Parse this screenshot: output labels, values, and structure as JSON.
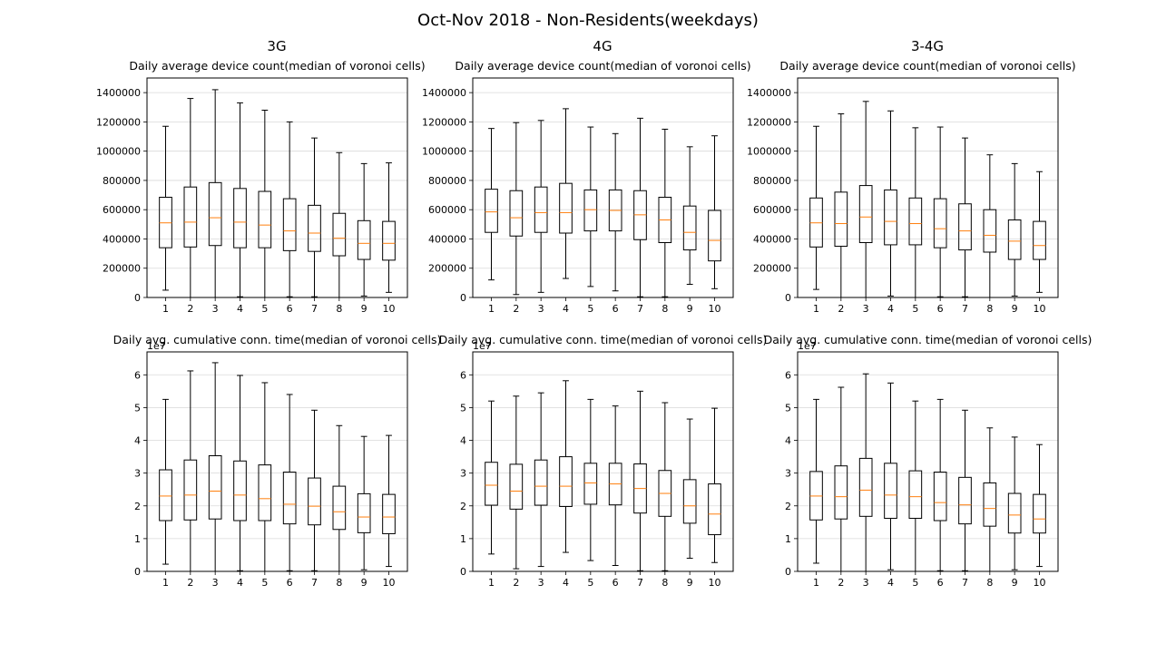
{
  "figure": {
    "title": "Oct-Nov 2018 - Non-Residents(weekdays)",
    "columns": [
      "3G",
      "4G",
      "3-4G"
    ]
  },
  "colors": {
    "box": "#000000",
    "median": "#ff7f0e",
    "grid": "#d9d9d9"
  },
  "chart_data": [
    {
      "type": "box",
      "column": "3G",
      "title": "Daily average device count(median of voronoi cells)",
      "categories": [
        "1",
        "2",
        "3",
        "4",
        "5",
        "6",
        "7",
        "8",
        "9",
        "10"
      ],
      "ylim": [
        0,
        1500000
      ],
      "yticks": [
        0,
        200000,
        400000,
        600000,
        800000,
        1000000,
        1200000,
        1400000
      ],
      "ytick_labels": [
        "0",
        "200000",
        "400000",
        "600000",
        "800000",
        "1000000",
        "1200000",
        "1400000"
      ],
      "offset_text": "",
      "grid": "y",
      "boxes": [
        {
          "whislo": 50000,
          "q1": 340000,
          "med": 510000,
          "q3": 685000,
          "whishi": 1170000
        },
        {
          "whislo": 0,
          "q1": 345000,
          "med": 515000,
          "q3": 755000,
          "whishi": 1360000
        },
        {
          "whislo": 0,
          "q1": 355000,
          "med": 545000,
          "q3": 785000,
          "whishi": 1420000
        },
        {
          "whislo": 5000,
          "q1": 340000,
          "med": 515000,
          "q3": 745000,
          "whishi": 1330000
        },
        {
          "whislo": 0,
          "q1": 340000,
          "med": 495000,
          "q3": 725000,
          "whishi": 1280000
        },
        {
          "whislo": 5000,
          "q1": 320000,
          "med": 455000,
          "q3": 675000,
          "whishi": 1200000
        },
        {
          "whislo": 5000,
          "q1": 315000,
          "med": 440000,
          "q3": 630000,
          "whishi": 1090000
        },
        {
          "whislo": 0,
          "q1": 285000,
          "med": 405000,
          "q3": 575000,
          "whishi": 990000
        },
        {
          "whislo": 10000,
          "q1": 260000,
          "med": 370000,
          "q3": 525000,
          "whishi": 915000
        },
        {
          "whislo": 35000,
          "q1": 255000,
          "med": 370000,
          "q3": 520000,
          "whishi": 920000
        }
      ]
    },
    {
      "type": "box",
      "column": "4G",
      "title": "Daily average device count(median of voronoi cells)",
      "categories": [
        "1",
        "2",
        "3",
        "4",
        "5",
        "6",
        "7",
        "8",
        "9",
        "10"
      ],
      "ylim": [
        0,
        1500000
      ],
      "yticks": [
        0,
        200000,
        400000,
        600000,
        800000,
        1000000,
        1200000,
        1400000
      ],
      "ytick_labels": [
        "0",
        "200000",
        "400000",
        "600000",
        "800000",
        "1000000",
        "1200000",
        "1400000"
      ],
      "offset_text": "",
      "grid": "y",
      "boxes": [
        {
          "whislo": 120000,
          "q1": 445000,
          "med": 585000,
          "q3": 740000,
          "whishi": 1155000
        },
        {
          "whislo": 20000,
          "q1": 420000,
          "med": 545000,
          "q3": 730000,
          "whishi": 1195000
        },
        {
          "whislo": 35000,
          "q1": 445000,
          "med": 580000,
          "q3": 755000,
          "whishi": 1210000
        },
        {
          "whislo": 130000,
          "q1": 440000,
          "med": 580000,
          "q3": 780000,
          "whishi": 1290000
        },
        {
          "whislo": 75000,
          "q1": 455000,
          "med": 600000,
          "q3": 735000,
          "whishi": 1165000
        },
        {
          "whislo": 45000,
          "q1": 455000,
          "med": 595000,
          "q3": 735000,
          "whishi": 1120000
        },
        {
          "whislo": 5000,
          "q1": 395000,
          "med": 565000,
          "q3": 730000,
          "whishi": 1225000
        },
        {
          "whislo": 5000,
          "q1": 375000,
          "med": 530000,
          "q3": 685000,
          "whishi": 1150000
        },
        {
          "whislo": 90000,
          "q1": 325000,
          "med": 445000,
          "q3": 625000,
          "whishi": 1030000
        },
        {
          "whislo": 60000,
          "q1": 250000,
          "med": 390000,
          "q3": 595000,
          "whishi": 1105000
        }
      ]
    },
    {
      "type": "box",
      "column": "3-4G",
      "title": "Daily average device count(median of voronoi cells)",
      "categories": [
        "1",
        "2",
        "3",
        "4",
        "5",
        "6",
        "7",
        "8",
        "9",
        "10"
      ],
      "ylim": [
        0,
        1500000
      ],
      "yticks": [
        0,
        200000,
        400000,
        600000,
        800000,
        1000000,
        1200000,
        1400000
      ],
      "ytick_labels": [
        "0",
        "200000",
        "400000",
        "600000",
        "800000",
        "1000000",
        "1200000",
        "1400000"
      ],
      "offset_text": "",
      "grid": "y",
      "boxes": [
        {
          "whislo": 55000,
          "q1": 345000,
          "med": 510000,
          "q3": 680000,
          "whishi": 1170000
        },
        {
          "whislo": 0,
          "q1": 350000,
          "med": 505000,
          "q3": 720000,
          "whishi": 1255000
        },
        {
          "whislo": 0,
          "q1": 375000,
          "med": 550000,
          "q3": 765000,
          "whishi": 1340000
        },
        {
          "whislo": 10000,
          "q1": 360000,
          "med": 520000,
          "q3": 735000,
          "whishi": 1275000
        },
        {
          "whislo": 0,
          "q1": 360000,
          "med": 505000,
          "q3": 680000,
          "whishi": 1160000
        },
        {
          "whislo": 5000,
          "q1": 340000,
          "med": 470000,
          "q3": 675000,
          "whishi": 1165000
        },
        {
          "whislo": 5000,
          "q1": 325000,
          "med": 455000,
          "q3": 640000,
          "whishi": 1090000
        },
        {
          "whislo": 0,
          "q1": 310000,
          "med": 425000,
          "q3": 600000,
          "whishi": 975000
        },
        {
          "whislo": 10000,
          "q1": 260000,
          "med": 385000,
          "q3": 530000,
          "whishi": 915000
        },
        {
          "whislo": 35000,
          "q1": 260000,
          "med": 355000,
          "q3": 520000,
          "whishi": 860000
        }
      ]
    },
    {
      "type": "box",
      "column": "3G",
      "title": "Daily avg. cumulative conn. time(median of voronoi cells)",
      "categories": [
        "1",
        "2",
        "3",
        "4",
        "5",
        "6",
        "7",
        "8",
        "9",
        "10"
      ],
      "ylim": [
        0,
        6.7
      ],
      "yticks": [
        0,
        1,
        2,
        3,
        4,
        5,
        6
      ],
      "ytick_labels": [
        "0",
        "1",
        "2",
        "3",
        "4",
        "5",
        "6"
      ],
      "offset_text": "1e7",
      "grid": "y",
      "boxes": [
        {
          "whislo": 0.22,
          "q1": 1.55,
          "med": 2.3,
          "q3": 3.1,
          "whishi": 5.25
        },
        {
          "whislo": 0,
          "q1": 1.57,
          "med": 2.33,
          "q3": 3.4,
          "whishi": 6.12
        },
        {
          "whislo": 0,
          "q1": 1.6,
          "med": 2.45,
          "q3": 3.53,
          "whishi": 6.37
        },
        {
          "whislo": 0.02,
          "q1": 1.55,
          "med": 2.33,
          "q3": 3.37,
          "whishi": 5.98
        },
        {
          "whislo": 0,
          "q1": 1.55,
          "med": 2.22,
          "q3": 3.25,
          "whishi": 5.76
        },
        {
          "whislo": 0.02,
          "q1": 1.45,
          "med": 2.05,
          "q3": 3.03,
          "whishi": 5.4
        },
        {
          "whislo": 0.02,
          "q1": 1.42,
          "med": 1.99,
          "q3": 2.85,
          "whishi": 4.92
        },
        {
          "whislo": 0,
          "q1": 1.28,
          "med": 1.82,
          "q3": 2.6,
          "whishi": 4.45
        },
        {
          "whislo": 0.05,
          "q1": 1.18,
          "med": 1.66,
          "q3": 2.37,
          "whishi": 4.12
        },
        {
          "whislo": 0.15,
          "q1": 1.15,
          "med": 1.66,
          "q3": 2.35,
          "whishi": 4.15
        }
      ]
    },
    {
      "type": "box",
      "column": "4G",
      "title": "Daily avg. cumulative conn. time(median of voronoi cells)",
      "categories": [
        "1",
        "2",
        "3",
        "4",
        "5",
        "6",
        "7",
        "8",
        "9",
        "10"
      ],
      "ylim": [
        0,
        6.7
      ],
      "yticks": [
        0,
        1,
        2,
        3,
        4,
        5,
        6
      ],
      "ytick_labels": [
        "0",
        "1",
        "2",
        "3",
        "4",
        "5",
        "6"
      ],
      "offset_text": "1e7",
      "grid": "y",
      "boxes": [
        {
          "whislo": 0.53,
          "q1": 2.02,
          "med": 2.63,
          "q3": 3.33,
          "whishi": 5.2
        },
        {
          "whislo": 0.08,
          "q1": 1.9,
          "med": 2.45,
          "q3": 3.27,
          "whishi": 5.35
        },
        {
          "whislo": 0.15,
          "q1": 2.02,
          "med": 2.6,
          "q3": 3.4,
          "whishi": 5.45
        },
        {
          "whislo": 0.58,
          "q1": 1.98,
          "med": 2.6,
          "q3": 3.5,
          "whishi": 5.82
        },
        {
          "whislo": 0.33,
          "q1": 2.05,
          "med": 2.7,
          "q3": 3.3,
          "whishi": 5.25
        },
        {
          "whislo": 0.18,
          "q1": 2.03,
          "med": 2.67,
          "q3": 3.3,
          "whishi": 5.05
        },
        {
          "whislo": 0.02,
          "q1": 1.78,
          "med": 2.53,
          "q3": 3.28,
          "whishi": 5.5
        },
        {
          "whislo": 0.02,
          "q1": 1.68,
          "med": 2.38,
          "q3": 3.08,
          "whishi": 5.15
        },
        {
          "whislo": 0.4,
          "q1": 1.47,
          "med": 2.0,
          "q3": 2.8,
          "whishi": 4.65
        },
        {
          "whislo": 0.27,
          "q1": 1.12,
          "med": 1.75,
          "q3": 2.67,
          "whishi": 4.98
        }
      ]
    },
    {
      "type": "box",
      "column": "3-4G",
      "title": "Daily avg. cumulative conn. time(median of voronoi cells)",
      "categories": [
        "1",
        "2",
        "3",
        "4",
        "5",
        "6",
        "7",
        "8",
        "9",
        "10"
      ],
      "ylim": [
        0,
        6.7
      ],
      "yticks": [
        0,
        1,
        2,
        3,
        4,
        5,
        6
      ],
      "ytick_labels": [
        "0",
        "1",
        "2",
        "3",
        "4",
        "5",
        "6"
      ],
      "offset_text": "1e7",
      "grid": "y",
      "boxes": [
        {
          "whislo": 0.25,
          "q1": 1.57,
          "med": 2.3,
          "q3": 3.05,
          "whishi": 5.25
        },
        {
          "whislo": 0,
          "q1": 1.6,
          "med": 2.28,
          "q3": 3.22,
          "whishi": 5.62
        },
        {
          "whislo": 0,
          "q1": 1.68,
          "med": 2.48,
          "q3": 3.45,
          "whishi": 6.03
        },
        {
          "whislo": 0.05,
          "q1": 1.62,
          "med": 2.33,
          "q3": 3.3,
          "whishi": 5.75
        },
        {
          "whislo": 0,
          "q1": 1.62,
          "med": 2.28,
          "q3": 3.07,
          "whishi": 5.2
        },
        {
          "whislo": 0.02,
          "q1": 1.55,
          "med": 2.1,
          "q3": 3.03,
          "whishi": 5.25
        },
        {
          "whislo": 0.02,
          "q1": 1.45,
          "med": 2.03,
          "q3": 2.87,
          "whishi": 4.92
        },
        {
          "whislo": 0,
          "q1": 1.38,
          "med": 1.92,
          "q3": 2.7,
          "whishi": 4.38
        },
        {
          "whislo": 0.05,
          "q1": 1.17,
          "med": 1.72,
          "q3": 2.38,
          "whishi": 4.1
        },
        {
          "whislo": 0.15,
          "q1": 1.17,
          "med": 1.6,
          "q3": 2.35,
          "whishi": 3.87
        }
      ]
    }
  ]
}
